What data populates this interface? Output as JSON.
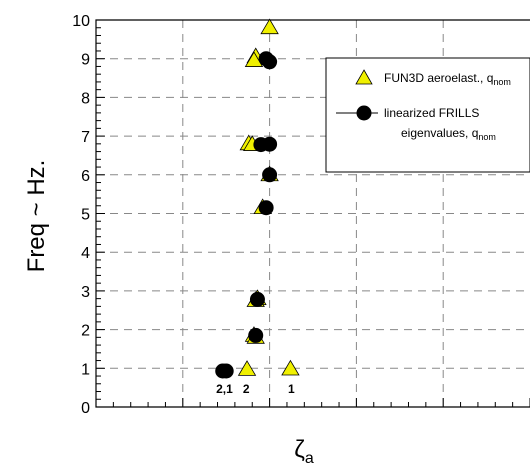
{
  "chart_data": {
    "type": "scatter",
    "title": "",
    "xlabel": "ζ",
    "xlabel_sub": "a",
    "ylabel": "Freq ~ Hz.",
    "xlim": [
      -0.01,
      0.015
    ],
    "ylim": [
      0,
      10
    ],
    "yticks": [
      0,
      1,
      2,
      3,
      4,
      5,
      6,
      7,
      8,
      9,
      10
    ],
    "grid": true,
    "legend_position": "top-right",
    "series": [
      {
        "name": "FUN3D aeroelast., q",
        "name_sub": "nom",
        "marker": "triangle",
        "color": "#f0f000",
        "points": [
          [
            0.0,
            9.8
          ],
          [
            -0.0008,
            9.05
          ],
          [
            -0.0009,
            8.95
          ],
          [
            -0.0012,
            6.8
          ],
          [
            -0.001,
            6.78
          ],
          [
            0.0,
            6.0
          ],
          [
            -0.0004,
            5.15
          ],
          [
            -0.0007,
            2.8
          ],
          [
            -0.0008,
            2.75
          ],
          [
            -0.0009,
            1.85
          ],
          [
            -0.0008,
            1.8
          ],
          [
            -0.0013,
            0.97
          ],
          [
            0.0012,
            0.98
          ]
        ]
      },
      {
        "name": "linearized FRILLS",
        "name_line2": "eigenvalues, q",
        "name_sub": "nom",
        "marker": "circle",
        "color": "#000000",
        "points": [
          [
            -0.0002,
            9.0
          ],
          [
            0.0,
            8.92
          ],
          [
            -0.0005,
            6.78
          ],
          [
            0.0,
            6.79
          ],
          [
            0.0,
            6.0
          ],
          [
            -0.0002,
            5.15
          ],
          [
            -0.0007,
            2.78
          ],
          [
            -0.0008,
            1.85
          ],
          [
            -0.0027,
            0.93
          ],
          [
            -0.0025,
            0.93
          ]
        ]
      }
    ],
    "annotations": [
      {
        "text": "2,1",
        "x": -0.0026,
        "y": 0.52
      },
      {
        "text": "2",
        "x": -0.00135,
        "y": 0.52
      },
      {
        "text": "1",
        "x": 0.00125,
        "y": 0.52
      }
    ]
  }
}
